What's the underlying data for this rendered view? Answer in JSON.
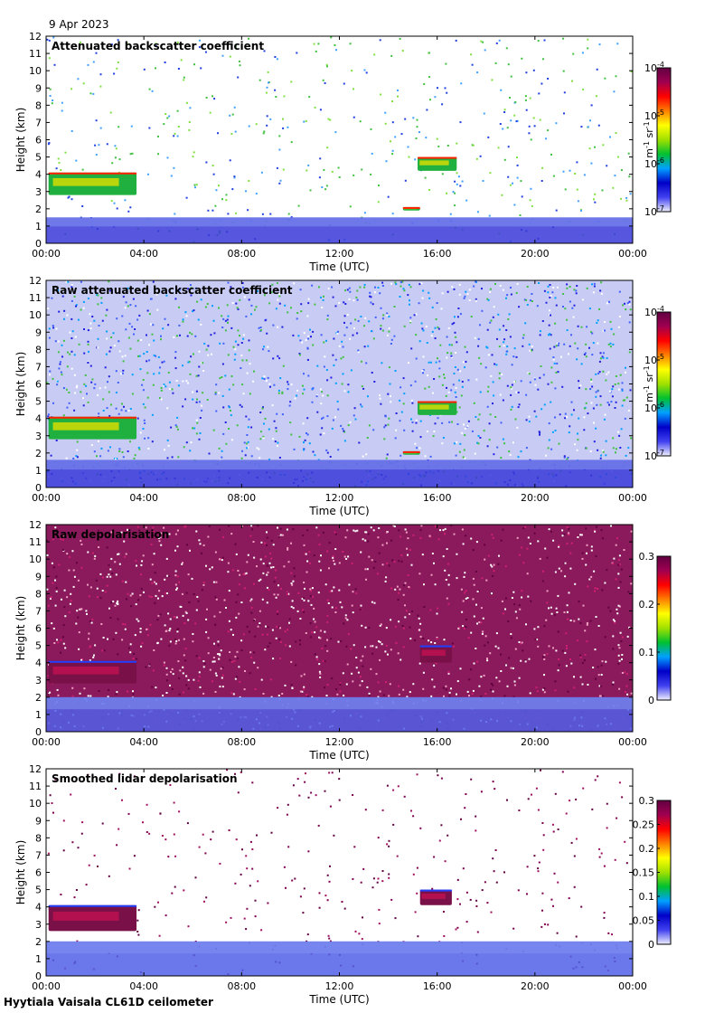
{
  "date_label": "9 Apr 2023",
  "footer": "Hyytiala Vaisala CL61D ceilometer",
  "colormap_rainbow": [
    "#f0f0ff",
    "#4040f0",
    "#0000c8",
    "#00a0ff",
    "#00c030",
    "#a0e000",
    "#ffff00",
    "#ff8000",
    "#ff0000",
    "#a00050",
    "#600040"
  ],
  "chart_data": [
    {
      "type": "heatmap",
      "title": "Attenuated backscatter coefficient",
      "xlabel": "Time (UTC)",
      "ylabel": "Height (km)",
      "x_ticks": [
        "00:00",
        "04:00",
        "08:00",
        "12:00",
        "16:00",
        "20:00",
        "00:00"
      ],
      "y_ticks": [
        "0",
        "1",
        "2",
        "3",
        "4",
        "5",
        "6",
        "7",
        "8",
        "9",
        "10",
        "11",
        "12"
      ],
      "xlim_hours": [
        0,
        24
      ],
      "ylim_km": [
        0,
        12
      ],
      "colorbar": {
        "scale": "log",
        "range": [
          1e-07,
          0.0001
        ],
        "ticks": [
          {
            "base": "10",
            "exp": "-7"
          },
          {
            "base": "10",
            "exp": "-6"
          },
          {
            "base": "10",
            "exp": "-5"
          },
          {
            "base": "10",
            "exp": "-4"
          }
        ],
        "unit": {
          "a": "m",
          "a_exp": "-1",
          "b": "sr",
          "b_exp": "-1"
        }
      },
      "noise": "sparse",
      "features": [
        {
          "name": "boundary layer",
          "t_start": 0,
          "t_end": 24,
          "h_bottom": 0,
          "h_top": 1.5
        },
        {
          "name": "cloud",
          "t_start": 0.1,
          "t_end": 3.7,
          "h_bottom": 2.8,
          "h_top": 4.1
        },
        {
          "name": "cloud",
          "t_start": 15.2,
          "t_end": 16.8,
          "h_bottom": 4.2,
          "h_top": 5.0
        },
        {
          "name": "cloud",
          "t_start": 14.6,
          "t_end": 15.3,
          "h_bottom": 1.9,
          "h_top": 2.1
        }
      ]
    },
    {
      "type": "heatmap",
      "title": "Raw attenuated backscatter coefficient",
      "xlabel": "Time (UTC)",
      "ylabel": "Height (km)",
      "x_ticks": [
        "00:00",
        "04:00",
        "08:00",
        "12:00",
        "16:00",
        "20:00",
        "00:00"
      ],
      "y_ticks": [
        "0",
        "1",
        "2",
        "3",
        "4",
        "5",
        "6",
        "7",
        "8",
        "9",
        "10",
        "11",
        "12"
      ],
      "xlim_hours": [
        0,
        24
      ],
      "ylim_km": [
        0,
        12
      ],
      "colorbar": {
        "scale": "log",
        "range": [
          1e-07,
          0.0001
        ],
        "ticks": [
          {
            "base": "10",
            "exp": "-7"
          },
          {
            "base": "10",
            "exp": "-6"
          },
          {
            "base": "10",
            "exp": "-5"
          },
          {
            "base": "10",
            "exp": "-4"
          }
        ],
        "unit": {
          "a": "m",
          "a_exp": "-1",
          "b": "sr",
          "b_exp": "-1"
        }
      },
      "noise": "dense",
      "features": [
        {
          "name": "boundary layer",
          "t_start": 0,
          "t_end": 24,
          "h_bottom": 0,
          "h_top": 1.6
        },
        {
          "name": "cloud",
          "t_start": 0.1,
          "t_end": 3.7,
          "h_bottom": 2.8,
          "h_top": 4.1
        },
        {
          "name": "cloud",
          "t_start": 15.2,
          "t_end": 16.8,
          "h_bottom": 4.2,
          "h_top": 5.0
        },
        {
          "name": "cloud",
          "t_start": 14.6,
          "t_end": 15.3,
          "h_bottom": 1.9,
          "h_top": 2.1
        }
      ]
    },
    {
      "type": "heatmap",
      "title": "Raw depolarisation",
      "xlabel": "Time (UTC)",
      "ylabel": "Height (km)",
      "x_ticks": [
        "00:00",
        "04:00",
        "08:00",
        "12:00",
        "16:00",
        "20:00",
        "00:00"
      ],
      "y_ticks": [
        "0",
        "1",
        "2",
        "3",
        "4",
        "5",
        "6",
        "7",
        "8",
        "9",
        "10",
        "11",
        "12"
      ],
      "xlim_hours": [
        0,
        24
      ],
      "ylim_km": [
        0,
        12
      ],
      "colorbar": {
        "scale": "linear",
        "range": [
          0,
          0.3
        ],
        "ticks": [
          "0",
          "0.1",
          "0.2",
          "0.3"
        ]
      },
      "noise": "saturated",
      "features": [
        {
          "name": "boundary layer",
          "t_start": 0,
          "t_end": 24,
          "h_bottom": 0,
          "h_top": 2.0
        },
        {
          "name": "cloud",
          "t_start": 0.1,
          "t_end": 3.7,
          "h_bottom": 2.8,
          "h_top": 4.1
        },
        {
          "name": "cloud",
          "t_start": 15.3,
          "t_end": 16.6,
          "h_bottom": 4.0,
          "h_top": 5.0
        }
      ]
    },
    {
      "type": "heatmap",
      "title": "Smoothed lidar depolarisation",
      "xlabel": "Time (UTC)",
      "ylabel": "Height (km)",
      "x_ticks": [
        "00:00",
        "04:00",
        "08:00",
        "12:00",
        "16:00",
        "20:00",
        "00:00"
      ],
      "y_ticks": [
        "0",
        "1",
        "2",
        "3",
        "4",
        "5",
        "6",
        "7",
        "8",
        "9",
        "10",
        "11",
        "12"
      ],
      "xlim_hours": [
        0,
        24
      ],
      "ylim_km": [
        0,
        12
      ],
      "colorbar": {
        "scale": "linear",
        "range": [
          0,
          0.3
        ],
        "ticks": [
          "0",
          "0.05",
          "0.1",
          "0.15",
          "0.2",
          "0.25",
          "0.3"
        ]
      },
      "noise": "speckle",
      "features": [
        {
          "name": "boundary layer",
          "t_start": 0,
          "t_end": 24,
          "h_bottom": 0,
          "h_top": 2.0
        },
        {
          "name": "cloud",
          "t_start": 0.1,
          "t_end": 3.7,
          "h_bottom": 2.6,
          "h_top": 4.1
        },
        {
          "name": "cloud",
          "t_start": 15.3,
          "t_end": 16.6,
          "h_bottom": 4.1,
          "h_top": 5.0
        }
      ]
    }
  ]
}
